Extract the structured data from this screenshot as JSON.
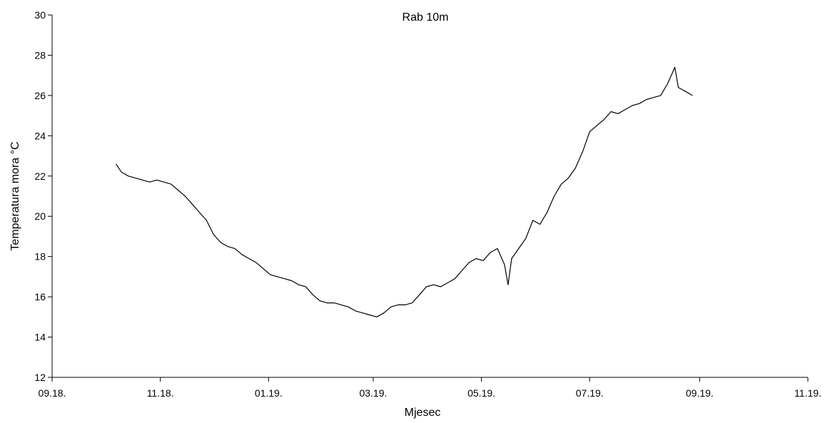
{
  "chart_data": {
    "type": "line",
    "title": "Rab 10m",
    "xlabel": "Mjesec",
    "ylabel": "Temperatura mora °C",
    "ylim": [
      12,
      30
    ],
    "yticks": [
      12,
      14,
      16,
      18,
      20,
      22,
      24,
      26,
      28,
      30
    ],
    "xlim": [
      "2018-09-01",
      "2019-11-01"
    ],
    "xticks": [
      {
        "date": "2018-09-01",
        "label": "09.18."
      },
      {
        "date": "2018-11-01",
        "label": "11.18."
      },
      {
        "date": "2019-01-01",
        "label": "01.19."
      },
      {
        "date": "2019-03-01",
        "label": "03.19."
      },
      {
        "date": "2019-05-01",
        "label": "05.19."
      },
      {
        "date": "2019-07-01",
        "label": "07.19."
      },
      {
        "date": "2019-09-01",
        "label": "09.19."
      },
      {
        "date": "2019-11-01",
        "label": "11.19."
      }
    ],
    "grid": false,
    "line_color": "#000000",
    "series": [
      {
        "x": [
          "2018-10-07",
          "2018-10-10",
          "2018-10-14",
          "2018-10-18",
          "2018-10-22",
          "2018-10-26",
          "2018-10-30",
          "2018-11-03",
          "2018-11-07",
          "2018-11-11",
          "2018-11-15",
          "2018-11-19",
          "2018-11-23",
          "2018-11-27",
          "2018-12-01",
          "2018-12-05",
          "2018-12-09",
          "2018-12-13",
          "2018-12-17",
          "2018-12-21",
          "2018-12-25",
          "2018-12-29",
          "2019-01-02",
          "2019-01-06",
          "2019-01-10",
          "2019-01-14",
          "2019-01-18",
          "2019-01-22",
          "2019-01-26",
          "2019-01-30",
          "2019-02-03",
          "2019-02-07",
          "2019-02-11",
          "2019-02-15",
          "2019-02-19",
          "2019-02-23",
          "2019-02-27",
          "2019-03-03",
          "2019-03-07",
          "2019-03-11",
          "2019-03-15",
          "2019-03-19",
          "2019-03-23",
          "2019-03-27",
          "2019-03-31",
          "2019-04-04",
          "2019-04-08",
          "2019-04-12",
          "2019-04-16",
          "2019-04-20",
          "2019-04-24",
          "2019-04-28",
          "2019-05-02",
          "2019-05-06",
          "2019-05-10",
          "2019-05-14",
          "2019-05-16",
          "2019-05-18",
          "2019-05-22",
          "2019-05-26",
          "2019-05-30",
          "2019-06-03",
          "2019-06-07",
          "2019-06-11",
          "2019-06-15",
          "2019-06-19",
          "2019-06-23",
          "2019-06-27",
          "2019-07-01",
          "2019-07-05",
          "2019-07-09",
          "2019-07-13",
          "2019-07-17",
          "2019-07-21",
          "2019-07-25",
          "2019-07-29",
          "2019-08-02",
          "2019-08-06",
          "2019-08-10",
          "2019-08-14",
          "2019-08-18",
          "2019-08-20",
          "2019-08-24",
          "2019-08-28"
        ],
        "y": [
          22.6,
          22.2,
          22.0,
          21.9,
          21.8,
          21.7,
          21.8,
          21.7,
          21.6,
          21.3,
          21.0,
          20.6,
          20.2,
          19.8,
          19.1,
          18.7,
          18.5,
          18.4,
          18.1,
          17.9,
          17.7,
          17.4,
          17.1,
          17.0,
          16.9,
          16.8,
          16.6,
          16.5,
          16.1,
          15.8,
          15.7,
          15.7,
          15.6,
          15.5,
          15.3,
          15.2,
          15.1,
          15.0,
          15.2,
          15.5,
          15.6,
          15.6,
          15.7,
          16.1,
          16.5,
          16.6,
          16.5,
          16.7,
          16.9,
          17.3,
          17.7,
          17.9,
          17.8,
          18.2,
          18.4,
          17.6,
          16.6,
          17.9,
          18.4,
          18.9,
          19.8,
          19.6,
          20.2,
          21.0,
          21.6,
          21.9,
          22.4,
          23.2,
          24.2,
          24.5,
          24.8,
          25.2,
          25.1,
          25.3,
          25.5,
          25.6,
          25.8,
          25.9,
          26.0,
          26.6,
          27.4,
          26.4,
          26.2,
          26.0
        ]
      }
    ]
  }
}
